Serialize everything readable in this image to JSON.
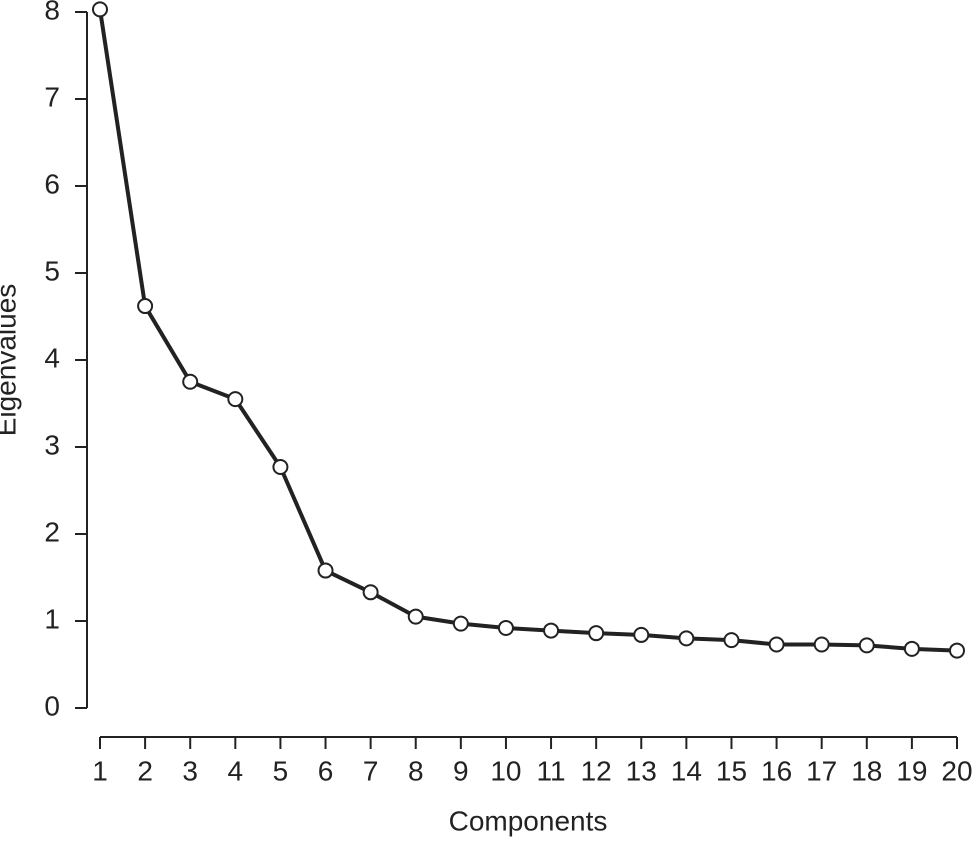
{
  "chart_data": {
    "type": "line",
    "x_label": "Components",
    "y_label": "Eigenvalues",
    "x": [
      1,
      2,
      3,
      4,
      5,
      6,
      7,
      8,
      9,
      10,
      11,
      12,
      13,
      14,
      15,
      16,
      17,
      18,
      19,
      20
    ],
    "series": [
      {
        "color": "#222222",
        "values": [
          8.03,
          4.62,
          3.75,
          3.55,
          2.77,
          1.58,
          1.33,
          1.05,
          0.97,
          0.92,
          0.89,
          0.86,
          0.84,
          0.8,
          0.78,
          0.73,
          0.73,
          0.72,
          0.68,
          0.66
        ]
      }
    ],
    "xlim": [
      1,
      20
    ],
    "xticks": [
      1,
      2,
      3,
      4,
      5,
      6,
      7,
      8,
      9,
      10,
      11,
      12,
      13,
      14,
      15,
      16,
      17,
      18,
      19,
      20
    ],
    "ylim": [
      0,
      8
    ],
    "yticks": [
      0,
      1,
      2,
      3,
      4,
      5,
      6,
      7,
      8
    ],
    "grid": false
  }
}
